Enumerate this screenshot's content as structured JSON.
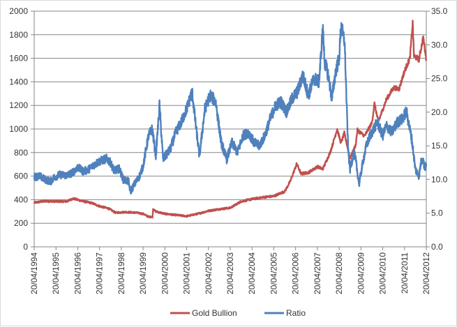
{
  "chart_data": {
    "type": "line",
    "title": "",
    "xlabel": "",
    "ylabel": "",
    "grid": true,
    "legend_position": "bottom",
    "x_ticks": [
      "20/04/1994",
      "20/04/1995",
      "20/04/1996",
      "20/04/1997",
      "20/04/1998",
      "20/04/1999",
      "20/04/2000",
      "20/04/2001",
      "20/04/2002",
      "20/04/2003",
      "20/04/2004",
      "20/04/2005",
      "20/04/2006",
      "20/04/2007",
      "20/04/2008",
      "20/04/2009",
      "20/04/2010",
      "20/04/2011",
      "20/04/2012"
    ],
    "y_left": {
      "ticks": [
        "0",
        "200",
        "400",
        "600",
        "800",
        "1000",
        "1200",
        "1400",
        "1600",
        "1800",
        "2000"
      ],
      "range": [
        0,
        2000
      ]
    },
    "y_right": {
      "ticks": [
        "0.0",
        "5.0",
        "10.0",
        "15.0",
        "20.0",
        "25.0",
        "30.0",
        "35.0"
      ],
      "range": [
        0,
        35
      ]
    },
    "x_range": [
      "1994-04-20",
      "2012-04-20"
    ],
    "series": [
      {
        "name": "Gold Bullion",
        "color": "#c0504d",
        "axis": "left",
        "points": [
          [
            "1994-04-20",
            375
          ],
          [
            "1994-10-20",
            388
          ],
          [
            "1995-04-20",
            385
          ],
          [
            "1995-10-20",
            385
          ],
          [
            "1996-02-01",
            410
          ],
          [
            "1996-06-20",
            390
          ],
          [
            "1996-12-20",
            370
          ],
          [
            "1997-04-20",
            345
          ],
          [
            "1997-09-20",
            325
          ],
          [
            "1998-01-10",
            290
          ],
          [
            "1998-06-20",
            295
          ],
          [
            "1998-12-20",
            290
          ],
          [
            "1999-04-20",
            280
          ],
          [
            "1999-07-20",
            255
          ],
          [
            "1999-09-25",
            255
          ],
          [
            "1999-10-05",
            320
          ],
          [
            "1999-11-20",
            300
          ],
          [
            "2000-04-20",
            280
          ],
          [
            "2000-10-20",
            270
          ],
          [
            "2001-04-20",
            260
          ],
          [
            "2001-10-20",
            280
          ],
          [
            "2002-04-20",
            305
          ],
          [
            "2002-10-20",
            320
          ],
          [
            "2003-04-20",
            330
          ],
          [
            "2003-10-20",
            385
          ],
          [
            "2004-04-20",
            405
          ],
          [
            "2004-10-20",
            420
          ],
          [
            "2005-04-20",
            430
          ],
          [
            "2005-10-20",
            470
          ],
          [
            "2006-01-20",
            555
          ],
          [
            "2006-05-10",
            705
          ],
          [
            "2006-07-20",
            620
          ],
          [
            "2006-11-20",
            630
          ],
          [
            "2007-04-20",
            680
          ],
          [
            "2007-07-20",
            660
          ],
          [
            "2007-11-20",
            800
          ],
          [
            "2008-01-20",
            900
          ],
          [
            "2008-03-17",
            1000
          ],
          [
            "2008-05-20",
            880
          ],
          [
            "2008-07-15",
            965
          ],
          [
            "2008-10-20",
            750
          ],
          [
            "2009-01-20",
            860
          ],
          [
            "2009-02-20",
            990
          ],
          [
            "2009-06-20",
            940
          ],
          [
            "2009-10-20",
            1050
          ],
          [
            "2009-12-03",
            1215
          ],
          [
            "2010-02-05",
            1060
          ],
          [
            "2010-06-20",
            1250
          ],
          [
            "2010-10-20",
            1350
          ],
          [
            "2011-01-20",
            1340
          ],
          [
            "2011-04-20",
            1490
          ],
          [
            "2011-07-20",
            1600
          ],
          [
            "2011-09-05",
            1900
          ],
          [
            "2011-09-26",
            1620
          ],
          [
            "2011-12-20",
            1590
          ],
          [
            "2012-02-28",
            1780
          ],
          [
            "2012-04-20",
            1580
          ]
        ]
      },
      {
        "name": "Ratio",
        "color": "#4f81bd",
        "axis": "right",
        "points": [
          [
            "1994-04-20",
            10.4
          ],
          [
            "1994-07-20",
            10.5
          ],
          [
            "1994-10-20",
            10.0
          ],
          [
            "1995-01-20",
            9.7
          ],
          [
            "1995-03-20",
            10.3
          ],
          [
            "1995-06-20",
            10.7
          ],
          [
            "1995-10-20",
            10.6
          ],
          [
            "1996-01-20",
            11.0
          ],
          [
            "1996-04-20",
            11.8
          ],
          [
            "1996-07-20",
            11.2
          ],
          [
            "1996-10-20",
            11.5
          ],
          [
            "1997-01-20",
            12.2
          ],
          [
            "1997-04-20",
            12.7
          ],
          [
            "1997-08-20",
            13.1
          ],
          [
            "1997-10-20",
            12.5
          ],
          [
            "1997-12-20",
            11.3
          ],
          [
            "1998-03-20",
            11.6
          ],
          [
            "1998-05-20",
            10.0
          ],
          [
            "1998-08-20",
            9.7
          ],
          [
            "1998-09-20",
            8.2
          ],
          [
            "1998-11-20",
            9.2
          ],
          [
            "1999-02-20",
            10.5
          ],
          [
            "1999-04-20",
            12.0
          ],
          [
            "1999-07-20",
            16.5
          ],
          [
            "1999-09-20",
            17.5
          ],
          [
            "1999-11-20",
            13.5
          ],
          [
            "2000-01-20",
            21.0
          ],
          [
            "2000-03-20",
            13.0
          ],
          [
            "2000-07-20",
            14.5
          ],
          [
            "2000-10-20",
            17.0
          ],
          [
            "2001-01-20",
            18.5
          ],
          [
            "2001-04-20",
            20.5
          ],
          [
            "2001-07-20",
            23.0
          ],
          [
            "2001-09-20",
            18.0
          ],
          [
            "2001-11-20",
            13.5
          ],
          [
            "2002-02-20",
            20.5
          ],
          [
            "2002-05-20",
            22.5
          ],
          [
            "2002-08-20",
            21.5
          ],
          [
            "2002-11-20",
            15.5
          ],
          [
            "2003-02-20",
            13.0
          ],
          [
            "2003-05-20",
            15.5
          ],
          [
            "2003-08-20",
            14.0
          ],
          [
            "2003-11-20",
            16.5
          ],
          [
            "2004-02-20",
            17.0
          ],
          [
            "2004-05-20",
            15.5
          ],
          [
            "2004-08-20",
            15.0
          ],
          [
            "2004-11-20",
            16.5
          ],
          [
            "2005-02-20",
            19.0
          ],
          [
            "2005-05-20",
            21.0
          ],
          [
            "2005-08-20",
            21.5
          ],
          [
            "2005-11-20",
            20.0
          ],
          [
            "2006-02-20",
            22.0
          ],
          [
            "2006-05-20",
            23.0
          ],
          [
            "2006-08-20",
            25.5
          ],
          [
            "2006-11-20",
            22.5
          ],
          [
            "2007-02-20",
            25.0
          ],
          [
            "2007-05-20",
            24.5
          ],
          [
            "2007-07-20",
            32.5
          ],
          [
            "2007-08-20",
            27.5
          ],
          [
            "2007-10-20",
            25.5
          ],
          [
            "2007-12-20",
            22.0
          ],
          [
            "2008-02-20",
            26.0
          ],
          [
            "2008-04-20",
            28.0
          ],
          [
            "2008-05-20",
            32.8
          ],
          [
            "2008-07-20",
            30.5
          ],
          [
            "2008-08-20",
            22.0
          ],
          [
            "2008-09-20",
            14.0
          ],
          [
            "2008-10-20",
            11.5
          ],
          [
            "2008-12-20",
            14.0
          ],
          [
            "2009-01-20",
            13.0
          ],
          [
            "2009-03-20",
            9.3
          ],
          [
            "2009-05-20",
            12.5
          ],
          [
            "2009-07-20",
            15.0
          ],
          [
            "2009-09-20",
            16.5
          ],
          [
            "2009-11-20",
            17.5
          ],
          [
            "2010-01-20",
            18.5
          ],
          [
            "2010-04-20",
            16.5
          ],
          [
            "2010-06-20",
            18.0
          ],
          [
            "2010-09-20",
            17.0
          ],
          [
            "2010-12-20",
            18.5
          ],
          [
            "2011-03-20",
            19.0
          ],
          [
            "2011-05-20",
            20.2
          ],
          [
            "2011-08-20",
            16.0
          ],
          [
            "2011-10-20",
            11.5
          ],
          [
            "2011-12-20",
            10.5
          ],
          [
            "2012-01-20",
            12.5
          ],
          [
            "2012-02-20",
            13.2
          ],
          [
            "2012-03-20",
            11.8
          ],
          [
            "2012-04-20",
            12.0
          ]
        ]
      }
    ]
  }
}
